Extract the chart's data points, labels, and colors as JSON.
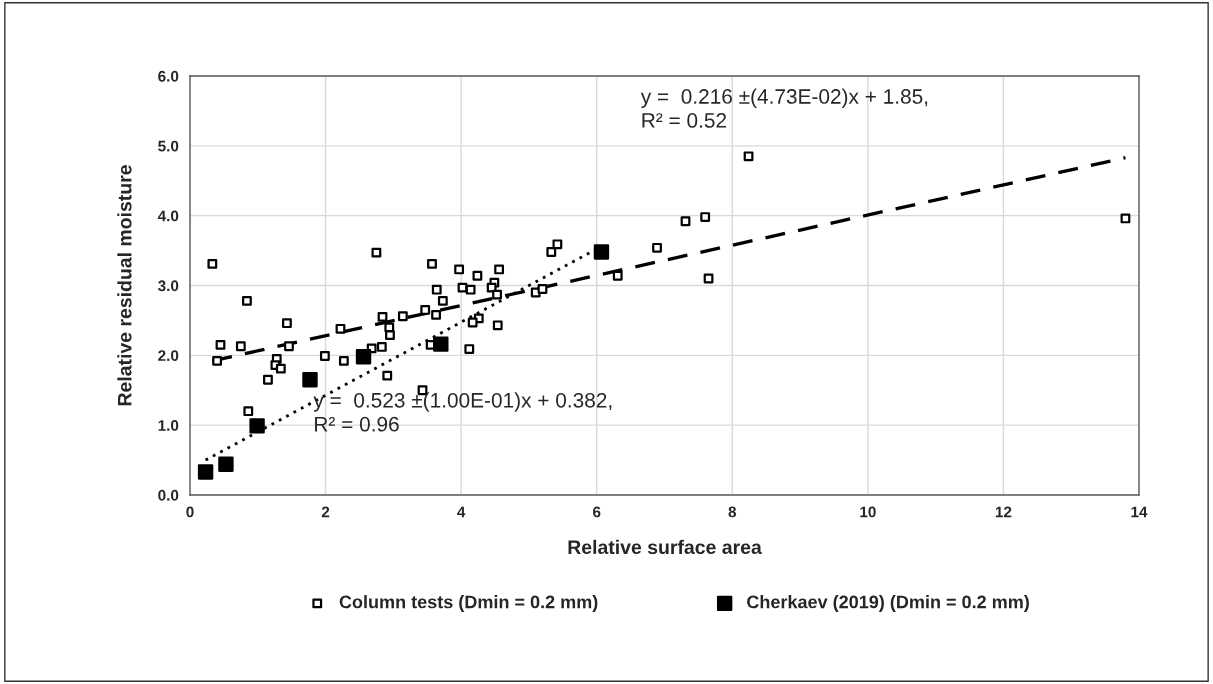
{
  "chart_data": {
    "type": "scatter",
    "xlabel": "Relative surface area",
    "ylabel": "Relative residual moisture",
    "xlim": [
      0,
      14
    ],
    "xticks": [
      0,
      2,
      4,
      6,
      8,
      10,
      12,
      14
    ],
    "ylim": [
      0,
      6
    ],
    "yticks": [
      {
        "value": 0,
        "label": "0.0"
      },
      {
        "value": 1,
        "label": "1.0"
      },
      {
        "value": 2,
        "label": "2.0"
      },
      {
        "value": 3,
        "label": "3.0"
      },
      {
        "value": 4,
        "label": "4.0"
      },
      {
        "value": 5,
        "label": "5.0"
      },
      {
        "value": 6,
        "label": "6.0"
      }
    ],
    "grid": true,
    "legend": "bottom",
    "series": [
      {
        "name": "Column tests (Dmin = 0.2 mm)",
        "marker": "square",
        "color": "#000000",
        "x": [
          0.33,
          0.84,
          0.45,
          0.4,
          0.75,
          1.43,
          1.46,
          1.28,
          1.26,
          1.34,
          1.15,
          0.86,
          2.22,
          1.99,
          2.27,
          2.75,
          2.84,
          2.94,
          2.95,
          2.83,
          2.68,
          2.91,
          3.14,
          3.43,
          3.57,
          3.64,
          3.47,
          3.63,
          3.55,
          3.73,
          3.97,
          4.02,
          4.14,
          4.24,
          4.56,
          4.49,
          4.45,
          4.53,
          4.26,
          4.17,
          4.54,
          4.12,
          5.1,
          5.2,
          5.33,
          5.42,
          6.31,
          6.89,
          7.31,
          7.6,
          7.65,
          8.24,
          13.8
        ],
        "values": [
          3.31,
          2.78,
          2.15,
          1.92,
          2.13,
          2.46,
          2.13,
          1.95,
          1.86,
          1.81,
          1.65,
          1.2,
          2.38,
          1.99,
          1.92,
          3.47,
          2.55,
          2.4,
          2.29,
          2.12,
          2.1,
          1.71,
          2.56,
          1.5,
          3.31,
          2.94,
          2.65,
          2.58,
          2.15,
          2.78,
          3.23,
          2.97,
          2.94,
          3.14,
          3.23,
          3.04,
          2.97,
          2.87,
          2.53,
          2.47,
          2.43,
          2.09,
          2.9,
          2.95,
          3.48,
          3.59,
          3.14,
          3.54,
          3.92,
          3.98,
          3.1,
          4.85,
          3.96
        ]
      },
      {
        "name": "Cherkaev (2019) (Dmin = 0.2 mm)",
        "marker": "square",
        "color": "#000000",
        "x": [
          0.23,
          0.53,
          0.99,
          1.77,
          2.56,
          3.7,
          6.07
        ],
        "values": [
          0.33,
          0.44,
          0.99,
          1.65,
          1.98,
          2.16,
          3.48
        ]
      },
      {
        "type": "line",
        "line_style": "dashed",
        "marker": "none",
        "color": "#000000",
        "x": [
          0.33,
          13.8
        ],
        "values": [
          1.92,
          4.83
        ]
      },
      {
        "type": "line",
        "line_style": "dotted",
        "marker": "none",
        "color": "#000000",
        "x": [
          0.23,
          6.07
        ],
        "values": [
          0.5,
          3.56
        ]
      }
    ],
    "annotations": [
      "y =  0.216 ±(4.73E-02)x + 1.85,\nR² = 0.52",
      "y =  0.523 ±(1.00E-01)x + 0.382,\nR² = 0.96"
    ]
  }
}
